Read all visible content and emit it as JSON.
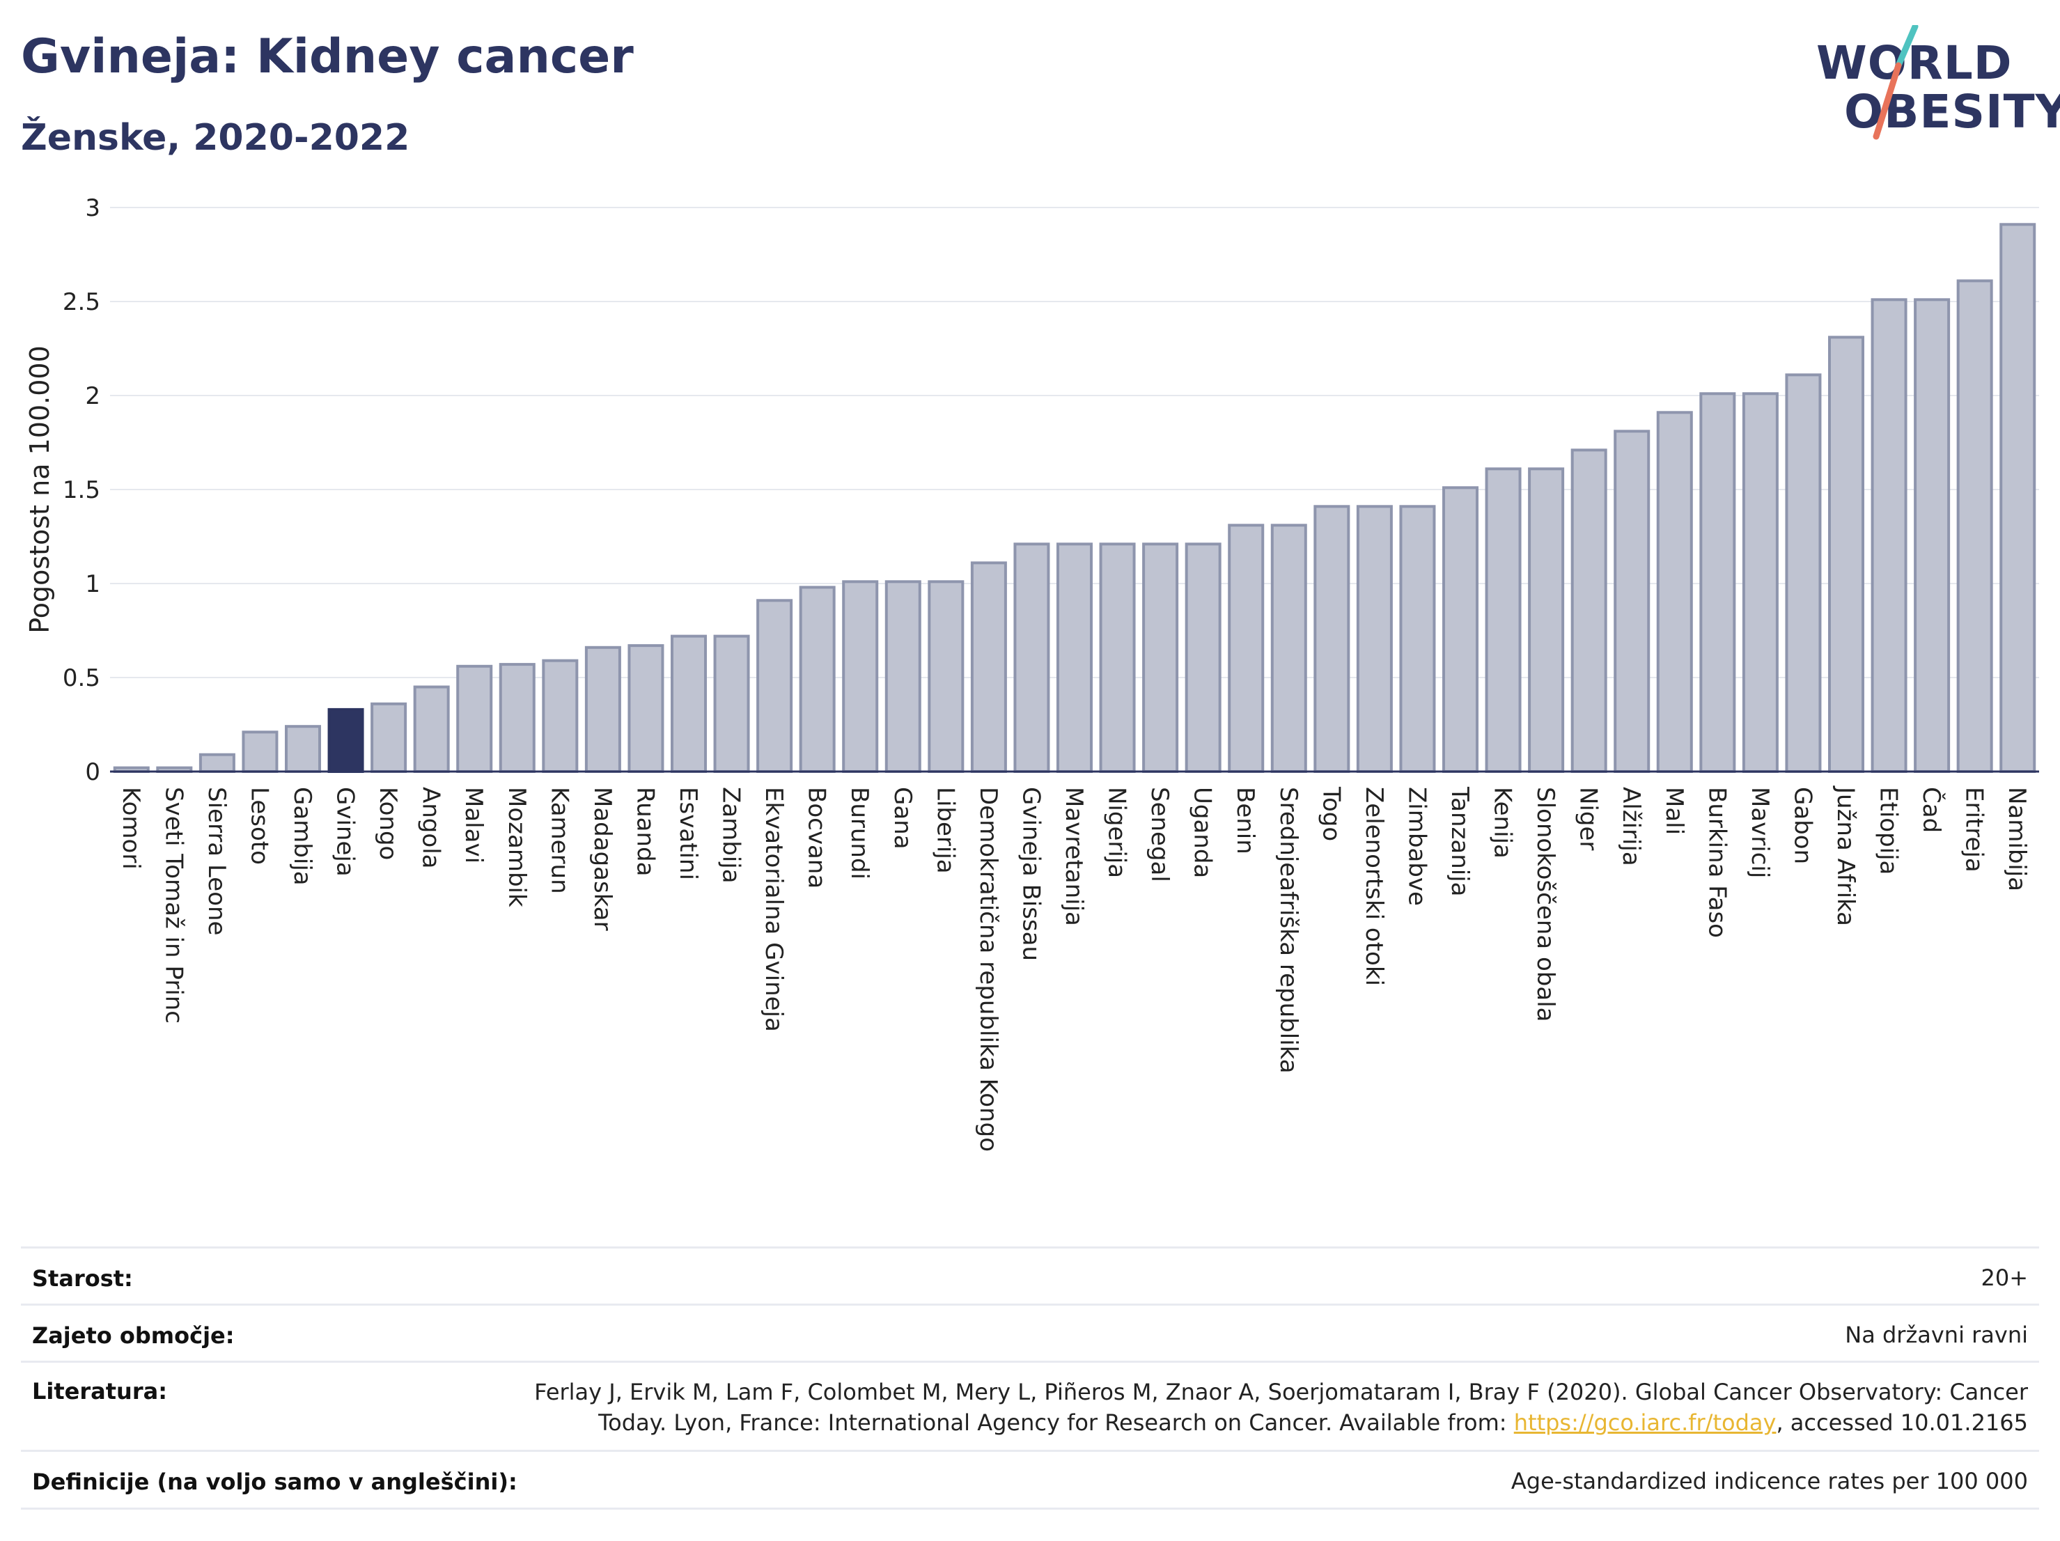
{
  "header": {
    "title": "Gvineja: Kidney cancer",
    "subtitle": "Ženske, 2020-2022"
  },
  "logo": {
    "line1": "WORLD",
    "line2": "OBESITY",
    "accent_colors": [
      "#4fc3c0",
      "#e8735a"
    ]
  },
  "chart_data": {
    "type": "bar",
    "ylabel": "Pogostost na 100.000",
    "ylim": [
      0,
      3
    ],
    "yticks": [
      0,
      0.5,
      1,
      1.5,
      2,
      2.5,
      3
    ],
    "ytick_labels": [
      "0",
      "0.5",
      "1",
      "1.5",
      "2",
      "2.5",
      "3"
    ],
    "grid": true,
    "highlight": "Gvineja",
    "bar_color": "#bfc3d1",
    "bar_border_color": "#8e95ad",
    "highlight_color": "#2d3561",
    "categories": [
      "Komori",
      "Sveti Tomaž in Princ",
      "Sierra Leone",
      "Lesoto",
      "Gambija",
      "Gvineja",
      "Kongo",
      "Angola",
      "Malavi",
      "Mozambik",
      "Kamerun",
      "Madagaskar",
      "Ruanda",
      "Esvatini",
      "Zambija",
      "Ekvatorialna Gvineja",
      "Bocvana",
      "Burundi",
      "Gana",
      "Liberija",
      "Demokratična republika Kongo",
      "Gvineja Bissau",
      "Mavretanija",
      "Nigerija",
      "Senegal",
      "Uganda",
      "Benin",
      "Srednjeafriška republika",
      "Togo",
      "Zelenortski otoki",
      "Zimbabve",
      "Tanzanija",
      "Kenija",
      "Slonokoščena obala",
      "Niger",
      "Alžirija",
      "Mali",
      "Burkina Faso",
      "Mavricij",
      "Gabon",
      "Južna Afrika",
      "Etiopija",
      "Čad",
      "Eritreja",
      "Namibija"
    ],
    "values": [
      0.02,
      0.02,
      0.09,
      0.21,
      0.24,
      0.33,
      0.36,
      0.45,
      0.56,
      0.57,
      0.59,
      0.66,
      0.67,
      0.72,
      0.72,
      0.91,
      0.98,
      1.01,
      1.01,
      1.01,
      1.11,
      1.21,
      1.21,
      1.21,
      1.21,
      1.21,
      1.31,
      1.31,
      1.41,
      1.41,
      1.41,
      1.51,
      1.61,
      1.61,
      1.71,
      1.81,
      1.91,
      2.01,
      2.01,
      2.11,
      2.31,
      2.51,
      2.51,
      2.61,
      2.91
    ]
  },
  "meta": {
    "rows": [
      {
        "label": "Starost:",
        "value": "20+"
      },
      {
        "label": "Zajeto območje:",
        "value": "Na državni ravni"
      },
      {
        "label": "Literatura:",
        "value_line1": "Ferlay J, Ervik M, Lam F, Colombet M, Mery L, Piñeros M, Znaor A, Soerjomataram I, Bray F (2020). Global Cancer Observatory: Cancer",
        "value_line2_pre": "Today. Lyon, France: International Agency for Research on Cancer. Available from: ",
        "value_link": "https://gco.iarc.fr/today",
        "value_line2_post": ", accessed 10.01.2165"
      },
      {
        "label": "Definicije (na voljo samo v angleščini):",
        "value": "Age-standardized indicence rates per 100 000"
      }
    ]
  }
}
